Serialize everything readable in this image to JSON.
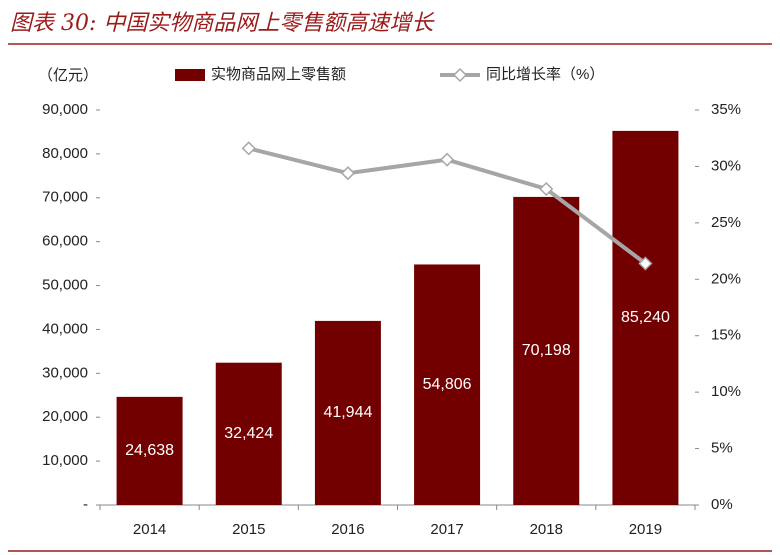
{
  "chart_data": {
    "type": "bar",
    "title": "图表 30: 中国实物商品网上零售额高速增长",
    "y_label": "（亿元）",
    "categories": [
      "2014",
      "2015",
      "2016",
      "2017",
      "2018",
      "2019"
    ],
    "series": [
      {
        "name": "实物商品网上零售额",
        "type": "bar",
        "color": "#730000",
        "values": [
          24638,
          32424,
          41944,
          54806,
          70198,
          85240
        ],
        "value_labels": [
          "24,638",
          "32,424",
          "41,944",
          "54,806",
          "70,198",
          "85,240"
        ]
      },
      {
        "name": "同比增长率（%）",
        "type": "line",
        "axis": "y2",
        "color": "#a6a6a6",
        "values": [
          null,
          31.6,
          29.4,
          30.6,
          28.0,
          21.4
        ]
      }
    ],
    "ylim": [
      0,
      90000
    ],
    "yticks": [
      {
        "value": 0,
        "label": "-"
      },
      {
        "value": 10000,
        "label": "10,000"
      },
      {
        "value": 20000,
        "label": "20,000"
      },
      {
        "value": 30000,
        "label": "30,000"
      },
      {
        "value": 40000,
        "label": "40,000"
      },
      {
        "value": 50000,
        "label": "50,000"
      },
      {
        "value": 60000,
        "label": "60,000"
      },
      {
        "value": 70000,
        "label": "70,000"
      },
      {
        "value": 80000,
        "label": "80,000"
      },
      {
        "value": 90000,
        "label": "90,000"
      }
    ],
    "y2lim": [
      0,
      35
    ],
    "y2ticks": [
      {
        "value": 0,
        "label": "0%"
      },
      {
        "value": 5,
        "label": "5%"
      },
      {
        "value": 10,
        "label": "10%"
      },
      {
        "value": 15,
        "label": "15%"
      },
      {
        "value": 20,
        "label": "20%"
      },
      {
        "value": 25,
        "label": "25%"
      },
      {
        "value": 30,
        "label": "30%"
      },
      {
        "value": 35,
        "label": "35%"
      }
    ],
    "grid": false
  }
}
